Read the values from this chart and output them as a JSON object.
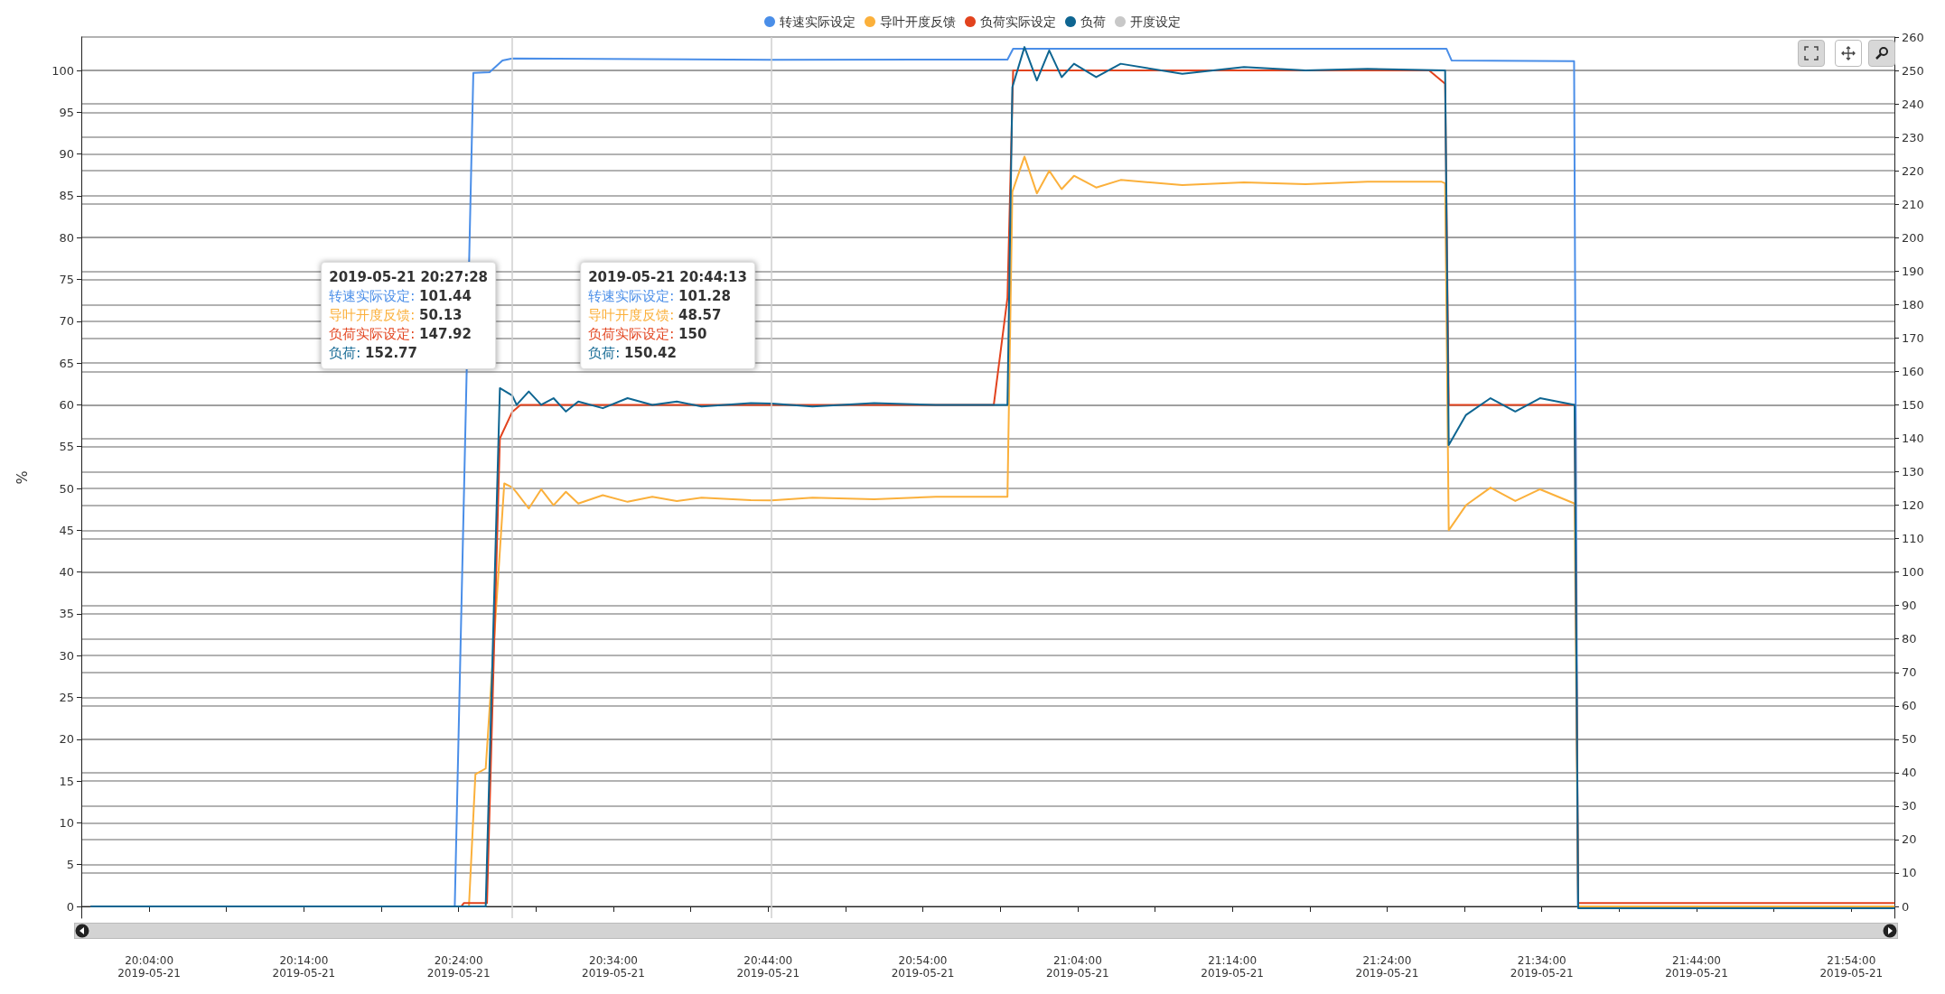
{
  "chart_data": {
    "type": "line",
    "ylabel": "%",
    "legend": "top",
    "grid": "y",
    "marker": "none",
    "xlim": [
      "2019-05-21T19:59:37",
      "2019-05-21T21:56:47"
    ],
    "xticks": [
      {
        "value": "2019-05-21T20:04",
        "label": "20:04:00\n2019-05-21"
      },
      {
        "value": "2019-05-21T20:09",
        "label": null
      },
      {
        "value": "2019-05-21T20:14",
        "label": "20:14:00\n2019-05-21"
      },
      {
        "value": "2019-05-21T20:19",
        "label": null
      },
      {
        "value": "2019-05-21T20:24",
        "label": "20:24:00\n2019-05-21"
      },
      {
        "value": "2019-05-21T20:29",
        "label": null
      },
      {
        "value": "2019-05-21T20:34",
        "label": "20:34:00\n2019-05-21"
      },
      {
        "value": "2019-05-21T20:39",
        "label": null
      },
      {
        "value": "2019-05-21T20:44",
        "label": "20:44:00\n2019-05-21"
      },
      {
        "value": "2019-05-21T20:49",
        "label": null
      },
      {
        "value": "2019-05-21T20:54",
        "label": "20:54:00\n2019-05-21"
      },
      {
        "value": "2019-05-21T20:59",
        "label": null
      },
      {
        "value": "2019-05-21T21:04",
        "label": "21:04:00\n2019-05-21"
      },
      {
        "value": "2019-05-21T21:09",
        "label": null
      },
      {
        "value": "2019-05-21T21:14",
        "label": "21:14:00\n2019-05-21"
      },
      {
        "value": "2019-05-21T21:19",
        "label": null
      },
      {
        "value": "2019-05-21T21:24",
        "label": "21:24:00\n2019-05-21"
      },
      {
        "value": "2019-05-21T21:29",
        "label": null
      },
      {
        "value": "2019-05-21T21:34",
        "label": "21:34:00\n2019-05-21"
      },
      {
        "value": "2019-05-21T21:39",
        "label": null
      },
      {
        "value": "2019-05-21T21:44",
        "label": "21:44:00\n2019-05-21"
      },
      {
        "value": "2019-05-21T21:49",
        "label": null
      },
      {
        "value": "2019-05-21T21:54",
        "label": "21:54:00\n2019-05-21"
      }
    ],
    "ylim": [
      -1.4,
      104
    ],
    "yticks": [
      0,
      5,
      10,
      15,
      20,
      25,
      30,
      35,
      40,
      45,
      50,
      55,
      60,
      65,
      70,
      75,
      80,
      85,
      90,
      95,
      100
    ],
    "y2lim": [
      -3.5,
      260
    ],
    "y2ticks": [
      0,
      10,
      20,
      30,
      40,
      50,
      60,
      70,
      80,
      90,
      100,
      110,
      120,
      130,
      140,
      150,
      160,
      170,
      180,
      190,
      200,
      210,
      220,
      230,
      240,
      250,
      260
    ],
    "series": [
      {
        "name": "转速实际设定",
        "color": "#4a8ee8",
        "x": [
          "2019-05-21T20:00:15",
          "2019-05-21T20:23:45",
          "2019-05-21T20:24:57",
          "2019-05-21T20:26:00",
          "2019-05-21T20:26:50",
          "2019-05-21T20:27:28",
          "2019-05-21T20:44:13",
          "2019-05-21T20:59:28",
          "2019-05-21T20:59:50",
          "2019-05-21T21:27:50",
          "2019-05-21T21:28:10",
          "2019-05-21T21:36:05",
          "2019-05-21T21:36:20",
          "2019-05-21T21:56:45"
        ],
        "values": [
          0,
          0,
          99.7,
          99.8,
          101.2,
          101.44,
          101.28,
          101.3,
          102.6,
          102.6,
          101.2,
          101.1,
          0,
          0
        ]
      },
      {
        "name": "导叶开度反馈",
        "color": "#fbb03b",
        "x": [
          "2019-05-21T20:00:15",
          "2019-05-21T20:24:40",
          "2019-05-21T20:25:05",
          "2019-05-21T20:25:45",
          "2019-05-21T20:26:57",
          "2019-05-21T20:27:28",
          "2019-05-21T20:27:45",
          "2019-05-21T20:28:32",
          "2019-05-21T20:29:20",
          "2019-05-21T20:30:08",
          "2019-05-21T20:30:56",
          "2019-05-21T20:31:44",
          "2019-05-21T20:33:19",
          "2019-05-21T20:34:55",
          "2019-05-21T20:36:31",
          "2019-05-21T20:38:06",
          "2019-05-21T20:39:42",
          "2019-05-21T20:42:53",
          "2019-05-21T20:44:13",
          "2019-05-21T20:46:52",
          "2019-05-21T20:50:51",
          "2019-05-21T20:54:50",
          "2019-05-21T20:59:28",
          "2019-05-21T20:59:47",
          "2019-05-21T21:00:34",
          "2019-05-21T21:01:22",
          "2019-05-21T21:02:10",
          "2019-05-21T21:02:58",
          "2019-05-21T21:03:46",
          "2019-05-21T21:05:12",
          "2019-05-21T21:06:47",
          "2019-05-21T21:10:46",
          "2019-05-21T21:14:45",
          "2019-05-21T21:18:44",
          "2019-05-21T21:22:44",
          "2019-05-21T21:27:30",
          "2019-05-21T21:27:45",
          "2019-05-21T21:27:59",
          "2019-05-21T21:29:06",
          "2019-05-21T21:30:41",
          "2019-05-21T21:32:17",
          "2019-05-21T21:33:53",
          "2019-05-21T21:36:07",
          "2019-05-21T21:36:21",
          "2019-05-21T21:56:45"
        ],
        "values": [
          0,
          0,
          15.8,
          16.5,
          50.6,
          50.13,
          49.5,
          47.6,
          49.9,
          48.0,
          49.6,
          48.2,
          49.2,
          48.4,
          49.0,
          48.5,
          48.9,
          48.6,
          48.57,
          48.9,
          48.7,
          49.0,
          49.0,
          85.5,
          89.7,
          85.3,
          88.0,
          85.8,
          87.4,
          86.0,
          86.9,
          86.3,
          86.6,
          86.4,
          86.7,
          86.7,
          86.5,
          45.0,
          48.0,
          50.1,
          48.5,
          49.9,
          48.2,
          0,
          0
        ]
      },
      {
        "name": "负荷实际设定",
        "color": "#e2431e",
        "axis": "y2",
        "x": [
          "2019-05-21T20:00:15",
          "2019-05-21T20:24:10",
          "2019-05-21T20:24:20",
          "2019-05-21T20:25:50",
          "2019-05-21T20:26:40",
          "2019-05-21T20:27:28",
          "2019-05-21T20:28:00",
          "2019-05-21T20:44:13",
          "2019-05-21T20:58:35",
          "2019-05-21T20:59:28",
          "2019-05-21T20:59:50",
          "2019-05-21T21:26:43",
          "2019-05-21T21:27:45",
          "2019-05-21T21:27:59",
          "2019-05-21T21:36:07",
          "2019-05-21T21:36:21",
          "2019-05-21T21:56:45"
        ],
        "values": [
          0,
          0,
          1,
          1,
          140,
          147.92,
          150,
          150,
          150,
          182,
          250,
          250,
          246,
          150,
          150,
          1,
          1
        ]
      },
      {
        "name": "负荷",
        "color": "#0e6591",
        "axis": "y2",
        "x": [
          "2019-05-21T20:00:15",
          "2019-05-21T20:25:45",
          "2019-05-21T20:26:40",
          "2019-05-21T20:27:28",
          "2019-05-21T20:27:45",
          "2019-05-21T20:28:32",
          "2019-05-21T20:29:20",
          "2019-05-21T20:30:08",
          "2019-05-21T20:30:56",
          "2019-05-21T20:31:44",
          "2019-05-21T20:33:19",
          "2019-05-21T20:34:55",
          "2019-05-21T20:36:31",
          "2019-05-21T20:38:06",
          "2019-05-21T20:39:42",
          "2019-05-21T20:42:53",
          "2019-05-21T20:44:13",
          "2019-05-21T20:46:52",
          "2019-05-21T20:50:51",
          "2019-05-21T20:54:50",
          "2019-05-21T20:59:28",
          "2019-05-21T20:59:47",
          "2019-05-21T21:00:34",
          "2019-05-21T21:01:22",
          "2019-05-21T21:02:10",
          "2019-05-21T21:02:58",
          "2019-05-21T21:03:46",
          "2019-05-21T21:05:12",
          "2019-05-21T21:06:47",
          "2019-05-21T21:10:46",
          "2019-05-21T21:14:45",
          "2019-05-21T21:18:44",
          "2019-05-21T21:22:44",
          "2019-05-21T21:27:45",
          "2019-05-21T21:27:59",
          "2019-05-21T21:29:06",
          "2019-05-21T21:30:41",
          "2019-05-21T21:32:17",
          "2019-05-21T21:33:53",
          "2019-05-21T21:36:07",
          "2019-05-21T21:36:21",
          "2019-05-21T21:56:45"
        ],
        "values": [
          0,
          0,
          155,
          152.77,
          150,
          154,
          150,
          152,
          148,
          151,
          149,
          152,
          150,
          151,
          149.5,
          150.5,
          150.42,
          149.5,
          150.5,
          150,
          150,
          245,
          257,
          247,
          256,
          248,
          252,
          248,
          252,
          249,
          251,
          250,
          250.5,
          250,
          138,
          147,
          152,
          148,
          152,
          150,
          -0.5,
          -0.5
        ]
      },
      {
        "name": "开度设定",
        "color": "#c8c8c8"
      }
    ],
    "ref_lines": [
      {
        "axis": "x",
        "value": "2019-05-21T20:27:28",
        "label": null,
        "color": "#cfcfcf"
      },
      {
        "axis": "x",
        "value": "2019-05-21T20:44:13",
        "label": null,
        "color": "#cfcfcf"
      }
    ],
    "annotations": [
      "2019-05-21 20:27:28\n转速实际设定: 101.44\n导叶开度反馈: 50.13\n负荷实际设定: 147.92\n负荷: 152.77",
      "2019-05-21 20:44:13\n转速实际设定: 101.28\n导叶开度反馈: 48.57\n负荷实际设定: 150\n负荷: 150.42"
    ]
  }
}
